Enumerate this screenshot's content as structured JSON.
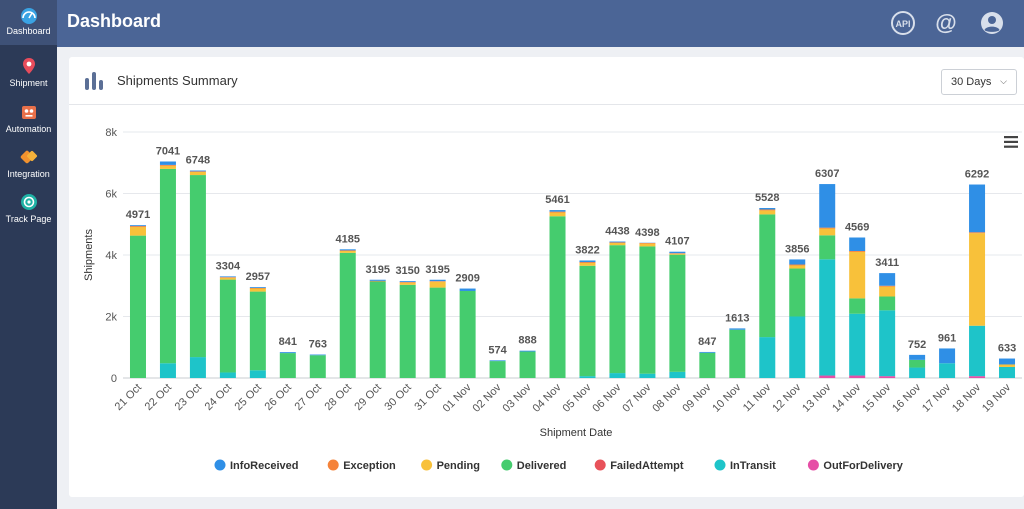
{
  "sidebar": {
    "items": [
      {
        "label": "Dashboard",
        "icon": "dashboard-icon",
        "active": true
      },
      {
        "label": "Shipment",
        "icon": "map-pin-icon"
      },
      {
        "label": "Automation",
        "icon": "robot-icon"
      },
      {
        "label": "Integration",
        "icon": "plug-icon"
      },
      {
        "label": "Track Page",
        "icon": "target-icon"
      }
    ]
  },
  "header": {
    "title": "Dashboard",
    "icons": [
      "api-icon",
      "at-icon",
      "user-icon"
    ],
    "api_label": "API",
    "at_label": "@"
  },
  "card": {
    "title": "Shipments Summary",
    "range_select": "30 Days"
  },
  "chart_data": {
    "type": "bar",
    "stacked": true,
    "xlabel": "Shipment Date",
    "ylabel": "Shipments",
    "ylim": [
      0,
      8000
    ],
    "yticks": [
      "0",
      "2k",
      "4k",
      "6k",
      "8k"
    ],
    "legend_position": "bottom",
    "categories": [
      "21 Oct",
      "22 Oct",
      "23 Oct",
      "24 Oct",
      "25 Oct",
      "26 Oct",
      "27 Oct",
      "28 Oct",
      "29 Oct",
      "30 Oct",
      "31 Oct",
      "01 Nov",
      "02 Nov",
      "03 Nov",
      "04 Nov",
      "05 Nov",
      "06 Nov",
      "07 Nov",
      "08 Nov",
      "09 Nov",
      "10 Nov",
      "11 Nov",
      "12 Nov",
      "13 Nov",
      "14 Nov",
      "15 Nov",
      "16 Nov",
      "17 Nov",
      "18 Nov",
      "19 Nov"
    ],
    "totals": [
      4971,
      7041,
      6748,
      3304,
      2957,
      841,
      763,
      4185,
      3195,
      3150,
      3195,
      2909,
      574,
      888,
      5461,
      3822,
      4438,
      4398,
      4107,
      847,
      1613,
      5528,
      3856,
      6307,
      4569,
      3411,
      752,
      961,
      6292,
      633
    ],
    "series": [
      {
        "name": "OutForDelivery",
        "color": "#e64ea6",
        "values": [
          0,
          0,
          0,
          0,
          0,
          0,
          0,
          0,
          0,
          0,
          0,
          0,
          0,
          0,
          0,
          0,
          0,
          0,
          0,
          0,
          0,
          0,
          0,
          80,
          80,
          60,
          0,
          0,
          60,
          0
        ]
      },
      {
        "name": "FailedAttempt",
        "color": "#e8525a",
        "values": [
          0,
          0,
          0,
          0,
          0,
          0,
          0,
          0,
          0,
          0,
          0,
          0,
          0,
          0,
          0,
          0,
          0,
          0,
          0,
          0,
          0,
          0,
          0,
          0,
          0,
          0,
          0,
          0,
          0,
          0
        ]
      },
      {
        "name": "InTransit",
        "color": "#1ec4c9",
        "values": [
          0,
          480,
          680,
          180,
          250,
          0,
          0,
          0,
          0,
          0,
          0,
          0,
          0,
          0,
          0,
          60,
          160,
          140,
          200,
          0,
          0,
          1330,
          2000,
          3780,
          2010,
          2140,
          340,
          480,
          1640,
          360
        ]
      },
      {
        "name": "Delivered",
        "color": "#45cc6e",
        "values": [
          4630,
          6320,
          5920,
          3020,
          2560,
          810,
          740,
          4070,
          3140,
          3030,
          2940,
          2830,
          550,
          860,
          5260,
          3590,
          4160,
          4140,
          3810,
          820,
          1570,
          3990,
          1560,
          780,
          500,
          450,
          250,
          0,
          0,
          0
        ]
      },
      {
        "name": "Pending",
        "color": "#f8c13a",
        "values": [
          280,
          100,
          100,
          60,
          100,
          0,
          0,
          60,
          0,
          70,
          190,
          0,
          0,
          0,
          120,
          90,
          70,
          90,
          30,
          0,
          0,
          130,
          100,
          220,
          1510,
          320,
          0,
          0,
          3010,
          80
        ]
      },
      {
        "name": "Exception",
        "color": "#f5833a",
        "values": [
          30,
          30,
          20,
          20,
          20,
          0,
          0,
          20,
          20,
          20,
          20,
          0,
          0,
          0,
          30,
          30,
          20,
          20,
          20,
          0,
          0,
          30,
          30,
          30,
          30,
          30,
          0,
          0,
          30,
          0
        ]
      },
      {
        "name": "InfoReceived",
        "color": "#2f8fe6",
        "values": [
          30,
          111,
          28,
          24,
          27,
          31,
          23,
          35,
          35,
          30,
          45,
          79,
          24,
          28,
          51,
          52,
          28,
          8,
          47,
          27,
          43,
          48,
          166,
          1417,
          439,
          411,
          162,
          481,
          1552,
          193
        ]
      }
    ],
    "legend": [
      "InfoReceived",
      "Exception",
      "Pending",
      "Delivered",
      "FailedAttempt",
      "InTransit",
      "OutForDelivery"
    ]
  }
}
